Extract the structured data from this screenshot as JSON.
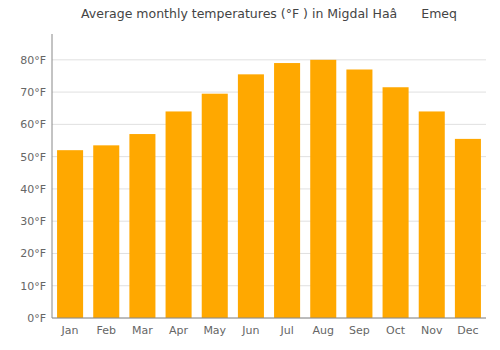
{
  "chart_data": {
    "type": "bar",
    "title": "Average monthly temperatures (°F ) in Migdal Haâ Emeq",
    "categories": [
      "Jan",
      "Feb",
      "Mar",
      "Apr",
      "May",
      "Jun",
      "Jul",
      "Aug",
      "Sep",
      "Oct",
      "Nov",
      "Dec"
    ],
    "values": [
      52,
      53.5,
      57,
      64,
      69.5,
      75.5,
      79,
      80,
      77,
      71.5,
      64,
      55.5
    ],
    "color": "#FFA800",
    "ylim": [
      0,
      88
    ],
    "yticks": [
      {
        "value": 0,
        "label": "0°F"
      },
      {
        "value": 10,
        "label": "10°F"
      },
      {
        "value": 20,
        "label": "20°F"
      },
      {
        "value": 30,
        "label": "30°F"
      },
      {
        "value": 40,
        "label": "40°F"
      },
      {
        "value": 50,
        "label": "50°F"
      },
      {
        "value": 60,
        "label": "60°F"
      },
      {
        "value": 70,
        "label": "70°F"
      },
      {
        "value": 80,
        "label": "80°F"
      }
    ],
    "grid": true
  }
}
